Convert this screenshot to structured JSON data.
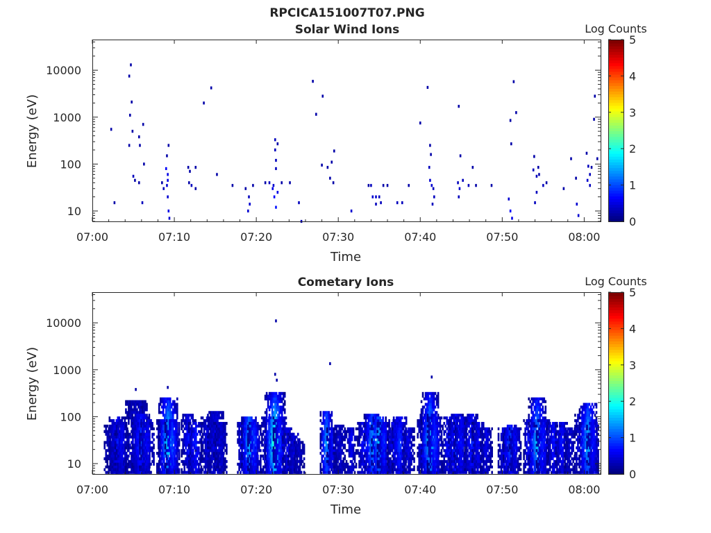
{
  "figure_title": "RPCICA151007T07.PNG",
  "colorbar": {
    "label": "Log Counts",
    "ticks": [
      "0",
      "1",
      "2",
      "3",
      "4",
      "5"
    ],
    "range": [
      0,
      5
    ],
    "colormap": "jet"
  },
  "chart_data": [
    {
      "type": "heatmap",
      "title": "Solar Wind Ions",
      "xlabel": "Time",
      "ylabel": "Energy (eV)",
      "x_ticks": [
        "07:00",
        "07:10",
        "07:20",
        "07:30",
        "07:40",
        "07:50",
        "08:00"
      ],
      "x_range_minutes": [
        0,
        62
      ],
      "y_ticks": [
        "10",
        "100",
        "1000",
        "10000"
      ],
      "y_scale": "log",
      "y_range": [
        6,
        45000
      ],
      "points": [
        [
          2.3,
          550,
          0.2
        ],
        [
          2.7,
          15,
          0.2
        ],
        [
          4.5,
          7500,
          0.2
        ],
        [
          4.7,
          13000,
          0.2
        ],
        [
          4.8,
          2100,
          0.2
        ],
        [
          4.6,
          1100,
          0.2
        ],
        [
          4.9,
          500,
          0.2
        ],
        [
          4.5,
          250,
          0.2
        ],
        [
          5.0,
          55,
          0.3
        ],
        [
          5.2,
          45,
          0.2
        ],
        [
          5.7,
          40,
          0.2
        ],
        [
          5.8,
          250,
          0.2
        ],
        [
          5.7,
          380,
          0.2
        ],
        [
          6.2,
          700,
          0.2
        ],
        [
          6.3,
          100,
          0.2
        ],
        [
          6.1,
          15,
          0.3
        ],
        [
          8.5,
          40,
          0.2
        ],
        [
          8.7,
          30,
          0.3
        ],
        [
          9.0,
          80,
          0.6
        ],
        [
          9.2,
          60,
          0.5
        ],
        [
          9.1,
          35,
          0.4
        ],
        [
          9.2,
          20,
          0.4
        ],
        [
          9.3,
          10,
          0.5
        ],
        [
          9.4,
          7,
          0.4
        ],
        [
          9.3,
          250,
          0.2
        ],
        [
          9.1,
          150,
          0.2
        ],
        [
          9.2,
          45,
          0.5
        ],
        [
          11.7,
          85,
          0.2
        ],
        [
          11.9,
          70,
          0.2
        ],
        [
          11.8,
          40,
          0.2
        ],
        [
          12.1,
          35,
          0.3
        ],
        [
          12.6,
          30,
          0.2
        ],
        [
          12.6,
          85,
          0.2
        ],
        [
          13.6,
          2000,
          0.2
        ],
        [
          14.5,
          4200,
          0.2
        ],
        [
          15.2,
          60,
          0.2
        ],
        [
          17.1,
          35,
          0.2
        ],
        [
          18.7,
          30,
          0.2
        ],
        [
          19.1,
          20,
          0.3
        ],
        [
          19.0,
          10,
          0.4
        ],
        [
          19.2,
          14,
          0.4
        ],
        [
          19.6,
          35,
          0.2
        ],
        [
          21.1,
          40,
          0.2
        ],
        [
          21.6,
          40,
          0.3
        ],
        [
          22.0,
          30,
          0.5
        ],
        [
          22.2,
          20,
          0.6
        ],
        [
          22.4,
          12,
          0.7
        ],
        [
          22.6,
          25,
          0.5
        ],
        [
          22.1,
          35,
          0.4
        ],
        [
          22.4,
          80,
          0.3
        ],
        [
          22.3,
          200,
          0.3
        ],
        [
          22.3,
          330,
          0.3
        ],
        [
          22.6,
          270,
          0.2
        ],
        [
          22.4,
          120,
          0.3
        ],
        [
          23.1,
          40,
          0.2
        ],
        [
          24.1,
          40,
          0.2
        ],
        [
          25.5,
          6,
          0.3
        ],
        [
          25.2,
          15,
          0.3
        ],
        [
          26.9,
          5800,
          0.2
        ],
        [
          27.3,
          1150,
          0.2
        ],
        [
          28.1,
          2800,
          0.2
        ],
        [
          28.0,
          95,
          0.2
        ],
        [
          28.7,
          85,
          0.2
        ],
        [
          29.2,
          110,
          0.2
        ],
        [
          29.5,
          190,
          0.2
        ],
        [
          29.0,
          50,
          0.2
        ],
        [
          29.4,
          40,
          0.2
        ],
        [
          31.6,
          10,
          0.4
        ],
        [
          33.7,
          35,
          0.2
        ],
        [
          34.0,
          35,
          0.3
        ],
        [
          34.2,
          20,
          0.4
        ],
        [
          34.6,
          20,
          0.4
        ],
        [
          35.0,
          20,
          0.3
        ],
        [
          34.6,
          14,
          0.3
        ],
        [
          35.2,
          15,
          0.3
        ],
        [
          35.5,
          35,
          0.2
        ],
        [
          36.0,
          35,
          0.2
        ],
        [
          37.2,
          15,
          0.3
        ],
        [
          37.8,
          15,
          0.3
        ],
        [
          38.6,
          35,
          0.2
        ],
        [
          40.0,
          750,
          0.2
        ],
        [
          40.9,
          4300,
          0.2
        ],
        [
          41.2,
          250,
          0.2
        ],
        [
          41.3,
          160,
          0.2
        ],
        [
          41.1,
          85,
          0.3
        ],
        [
          41.2,
          45,
          0.4
        ],
        [
          41.4,
          35,
          0.4
        ],
        [
          41.6,
          30,
          0.3
        ],
        [
          41.7,
          20,
          0.3
        ],
        [
          41.5,
          14,
          0.3
        ],
        [
          44.7,
          1700,
          0.2
        ],
        [
          44.9,
          150,
          0.2
        ],
        [
          44.6,
          40,
          0.3
        ],
        [
          44.8,
          30,
          0.4
        ],
        [
          44.7,
          20,
          0.3
        ],
        [
          45.2,
          45,
          0.3
        ],
        [
          45.9,
          35,
          0.3
        ],
        [
          46.4,
          85,
          0.2
        ],
        [
          46.8,
          35,
          0.2
        ],
        [
          48.7,
          35,
          0.2
        ],
        [
          50.8,
          18,
          0.4
        ],
        [
          51.0,
          10,
          0.6
        ],
        [
          51.2,
          7,
          0.5
        ],
        [
          51.0,
          850,
          0.2
        ],
        [
          51.1,
          270,
          0.2
        ],
        [
          51.4,
          5700,
          0.2
        ],
        [
          51.7,
          1250,
          0.2
        ],
        [
          53.9,
          145,
          0.2
        ],
        [
          53.8,
          75,
          0.3
        ],
        [
          54.2,
          55,
          0.3
        ],
        [
          54.5,
          60,
          0.2
        ],
        [
          54.4,
          85,
          0.2
        ],
        [
          54.2,
          25,
          0.3
        ],
        [
          54.0,
          15,
          0.3
        ],
        [
          55.0,
          35,
          0.3
        ],
        [
          55.4,
          40,
          0.2
        ],
        [
          57.5,
          30,
          0.2
        ],
        [
          58.4,
          130,
          0.2
        ],
        [
          59.0,
          50,
          0.2
        ],
        [
          59.1,
          14,
          0.4
        ],
        [
          59.3,
          8,
          0.4
        ],
        [
          60.3,
          170,
          0.2
        ],
        [
          60.5,
          90,
          0.3
        ],
        [
          60.7,
          60,
          0.3
        ],
        [
          60.4,
          45,
          0.4
        ],
        [
          60.7,
          35,
          0.3
        ],
        [
          60.9,
          85,
          0.2
        ],
        [
          61.2,
          900,
          0.2
        ],
        [
          61.3,
          2800,
          0.2
        ],
        [
          61.6,
          130,
          0.2
        ]
      ]
    },
    {
      "type": "heatmap",
      "title": "Cometary Ions",
      "xlabel": "Time",
      "ylabel": "Energy (eV)",
      "x_ticks": [
        "07:00",
        "07:10",
        "07:20",
        "07:30",
        "07:40",
        "07:50",
        "08:00"
      ],
      "x_range_minutes": [
        0,
        62
      ],
      "y_ticks": [
        "10",
        "100",
        "1000",
        "10000"
      ],
      "y_scale": "log",
      "y_range": [
        6,
        45000
      ],
      "points": [
        [
          22.4,
          11000,
          0.2
        ],
        [
          22.3,
          800,
          0.2
        ],
        [
          22.5,
          600,
          0.2
        ],
        [
          29.0,
          1350,
          0.2
        ],
        [
          41.4,
          700,
          0.2
        ],
        [
          9.2,
          420,
          0.2
        ],
        [
          5.3,
          380,
          0.2
        ]
      ],
      "bursts": [
        [
          2.5,
          2,
          0.3,
          65
        ],
        [
          3.1,
          2,
          0.6,
          95
        ],
        [
          3.6,
          1.6,
          0.5,
          80
        ],
        [
          5.4,
          2.6,
          0.4,
          220
        ],
        [
          6.0,
          2.2,
          0.9,
          110
        ],
        [
          6.7,
          1.8,
          0.5,
          90
        ],
        [
          8.8,
          1.8,
          0.7,
          90
        ],
        [
          9.3,
          2.3,
          1.9,
          250
        ],
        [
          9.8,
          1.8,
          0.9,
          90
        ],
        [
          11.8,
          1.8,
          0.6,
          110
        ],
        [
          12.6,
          1.6,
          0.7,
          80
        ],
        [
          14.1,
          1.6,
          0.4,
          95
        ],
        [
          15.1,
          2,
          0.5,
          140
        ],
        [
          15.7,
          1.7,
          0.3,
          80
        ],
        [
          18.6,
          1.7,
          0.8,
          80
        ],
        [
          19.2,
          1.9,
          1.6,
          100
        ],
        [
          19.8,
          1.6,
          0.8,
          80
        ],
        [
          21.6,
          1.8,
          0.8,
          100
        ],
        [
          22.3,
          2.4,
          2.3,
          350
        ],
        [
          22.9,
          1.6,
          0.8,
          100
        ],
        [
          23.9,
          1.3,
          0.5,
          60
        ],
        [
          24.6,
          1.4,
          0.4,
          45
        ],
        [
          25.3,
          1.3,
          0.2,
          30
        ],
        [
          28.6,
          1.5,
          1.4,
          130
        ],
        [
          29.3,
          1.3,
          0.6,
          60
        ],
        [
          30.2,
          1.5,
          0.3,
          70
        ],
        [
          31.6,
          1.2,
          0.5,
          60
        ],
        [
          33.3,
          1.8,
          0.7,
          80
        ],
        [
          34.2,
          2,
          1.4,
          110
        ],
        [
          35.0,
          1.8,
          1.6,
          100
        ],
        [
          35.6,
          1.6,
          0.7,
          80
        ],
        [
          36.9,
          1.7,
          0.6,
          90
        ],
        [
          37.5,
          1.8,
          0.8,
          100
        ],
        [
          38.6,
          1.4,
          0.4,
          60
        ],
        [
          40.6,
          1.8,
          0.8,
          120
        ],
        [
          41.2,
          2.1,
          1.8,
          320
        ],
        [
          41.8,
          1.8,
          0.8,
          110
        ],
        [
          43.6,
          1.7,
          0.7,
          100
        ],
        [
          44.4,
          1.8,
          0.9,
          120
        ],
        [
          45.0,
          1.7,
          0.6,
          100
        ],
        [
          46.3,
          1.7,
          0.7,
          110
        ],
        [
          47.1,
          1.5,
          0.5,
          80
        ],
        [
          48.1,
          1.4,
          0.4,
          60
        ],
        [
          50.3,
          1.5,
          0.6,
          60
        ],
        [
          51.0,
          1.7,
          1.0,
          70
        ],
        [
          51.6,
          1.4,
          0.5,
          60
        ],
        [
          53.4,
          1.5,
          0.7,
          90
        ],
        [
          54.3,
          2.1,
          1.6,
          250
        ],
        [
          55.0,
          1.6,
          0.7,
          90
        ],
        [
          56.3,
          1.6,
          0.6,
          80
        ],
        [
          57.3,
          1.5,
          0.6,
          80
        ],
        [
          58.3,
          1.3,
          0.3,
          60
        ],
        [
          59.8,
          1.8,
          0.8,
          110
        ],
        [
          60.5,
          2.1,
          1.6,
          200
        ],
        [
          61.1,
          1.5,
          0.6,
          80
        ]
      ]
    }
  ]
}
